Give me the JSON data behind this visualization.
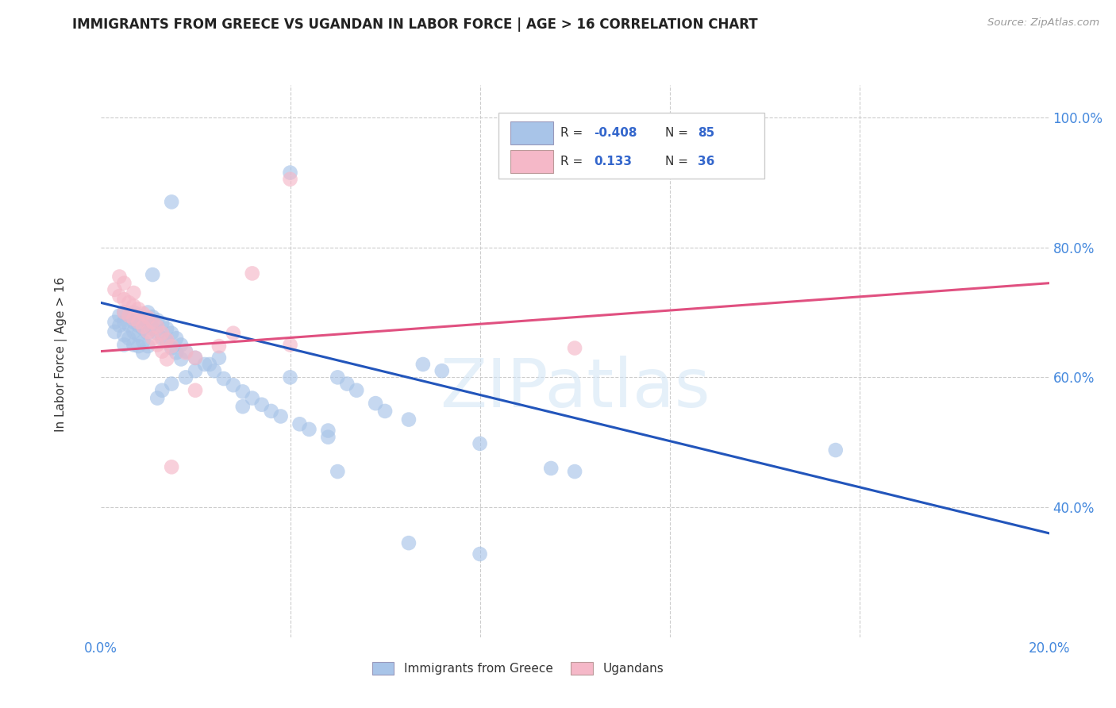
{
  "title": "IMMIGRANTS FROM GREECE VS UGANDAN IN LABOR FORCE | AGE > 16 CORRELATION CHART",
  "source_text": "Source: ZipAtlas.com",
  "ylabel": "In Labor Force | Age > 16",
  "xlim": [
    0.0,
    0.2
  ],
  "ylim": [
    0.2,
    1.05
  ],
  "blue_color": "#a8c4e8",
  "pink_color": "#f5b8c8",
  "line_blue_color": "#2255bb",
  "line_pink_color": "#e05080",
  "blue_line": [
    [
      0.0,
      0.715
    ],
    [
      0.2,
      0.36
    ]
  ],
  "pink_line": [
    [
      0.0,
      0.64
    ],
    [
      0.2,
      0.745
    ]
  ],
  "blue_scatter": [
    [
      0.003,
      0.685
    ],
    [
      0.003,
      0.67
    ],
    [
      0.004,
      0.695
    ],
    [
      0.004,
      0.68
    ],
    [
      0.005,
      0.7
    ],
    [
      0.005,
      0.685
    ],
    [
      0.005,
      0.665
    ],
    [
      0.005,
      0.65
    ],
    [
      0.006,
      0.695
    ],
    [
      0.006,
      0.68
    ],
    [
      0.006,
      0.66
    ],
    [
      0.007,
      0.7
    ],
    [
      0.007,
      0.685
    ],
    [
      0.007,
      0.67
    ],
    [
      0.007,
      0.65
    ],
    [
      0.008,
      0.695
    ],
    [
      0.008,
      0.68
    ],
    [
      0.008,
      0.665
    ],
    [
      0.008,
      0.648
    ],
    [
      0.009,
      0.69
    ],
    [
      0.009,
      0.675
    ],
    [
      0.009,
      0.655
    ],
    [
      0.009,
      0.638
    ],
    [
      0.01,
      0.7
    ],
    [
      0.01,
      0.685
    ],
    [
      0.01,
      0.668
    ],
    [
      0.01,
      0.648
    ],
    [
      0.011,
      0.693
    ],
    [
      0.011,
      0.675
    ],
    [
      0.011,
      0.758
    ],
    [
      0.012,
      0.688
    ],
    [
      0.012,
      0.668
    ],
    [
      0.013,
      0.683
    ],
    [
      0.013,
      0.66
    ],
    [
      0.014,
      0.675
    ],
    [
      0.014,
      0.655
    ],
    [
      0.015,
      0.668
    ],
    [
      0.015,
      0.645
    ],
    [
      0.015,
      0.87
    ],
    [
      0.016,
      0.66
    ],
    [
      0.016,
      0.638
    ],
    [
      0.017,
      0.65
    ],
    [
      0.017,
      0.628
    ],
    [
      0.018,
      0.64
    ],
    [
      0.02,
      0.63
    ],
    [
      0.022,
      0.62
    ],
    [
      0.024,
      0.61
    ],
    [
      0.026,
      0.598
    ],
    [
      0.028,
      0.588
    ],
    [
      0.03,
      0.578
    ],
    [
      0.03,
      0.555
    ],
    [
      0.032,
      0.568
    ],
    [
      0.034,
      0.558
    ],
    [
      0.036,
      0.548
    ],
    [
      0.038,
      0.54
    ],
    [
      0.04,
      0.6
    ],
    [
      0.04,
      0.915
    ],
    [
      0.042,
      0.528
    ],
    [
      0.044,
      0.52
    ],
    [
      0.048,
      0.518
    ],
    [
      0.048,
      0.508
    ],
    [
      0.05,
      0.6
    ],
    [
      0.052,
      0.59
    ],
    [
      0.054,
      0.58
    ],
    [
      0.058,
      0.56
    ],
    [
      0.06,
      0.548
    ],
    [
      0.065,
      0.535
    ],
    [
      0.068,
      0.62
    ],
    [
      0.072,
      0.61
    ],
    [
      0.08,
      0.498
    ],
    [
      0.095,
      0.46
    ],
    [
      0.1,
      0.455
    ],
    [
      0.155,
      0.488
    ],
    [
      0.065,
      0.345
    ],
    [
      0.08,
      0.328
    ],
    [
      0.05,
      0.455
    ],
    [
      0.025,
      0.63
    ],
    [
      0.023,
      0.62
    ],
    [
      0.02,
      0.61
    ],
    [
      0.018,
      0.6
    ],
    [
      0.015,
      0.59
    ],
    [
      0.013,
      0.58
    ],
    [
      0.012,
      0.568
    ]
  ],
  "pink_scatter": [
    [
      0.003,
      0.735
    ],
    [
      0.004,
      0.725
    ],
    [
      0.004,
      0.755
    ],
    [
      0.005,
      0.72
    ],
    [
      0.005,
      0.745
    ],
    [
      0.005,
      0.7
    ],
    [
      0.006,
      0.715
    ],
    [
      0.006,
      0.695
    ],
    [
      0.007,
      0.71
    ],
    [
      0.007,
      0.73
    ],
    [
      0.007,
      0.69
    ],
    [
      0.008,
      0.705
    ],
    [
      0.008,
      0.685
    ],
    [
      0.009,
      0.698
    ],
    [
      0.009,
      0.678
    ],
    [
      0.01,
      0.692
    ],
    [
      0.01,
      0.67
    ],
    [
      0.011,
      0.685
    ],
    [
      0.011,
      0.66
    ],
    [
      0.012,
      0.678
    ],
    [
      0.012,
      0.65
    ],
    [
      0.013,
      0.668
    ],
    [
      0.013,
      0.64
    ],
    [
      0.014,
      0.658
    ],
    [
      0.014,
      0.628
    ],
    [
      0.015,
      0.648
    ],
    [
      0.015,
      0.462
    ],
    [
      0.018,
      0.638
    ],
    [
      0.02,
      0.63
    ],
    [
      0.02,
      0.58
    ],
    [
      0.025,
      0.648
    ],
    [
      0.028,
      0.668
    ],
    [
      0.032,
      0.76
    ],
    [
      0.04,
      0.65
    ],
    [
      0.04,
      0.905
    ],
    [
      0.1,
      0.645
    ]
  ],
  "watermark_text": "ZIPatlas",
  "background_color": "#ffffff",
  "grid_color": "#cccccc"
}
